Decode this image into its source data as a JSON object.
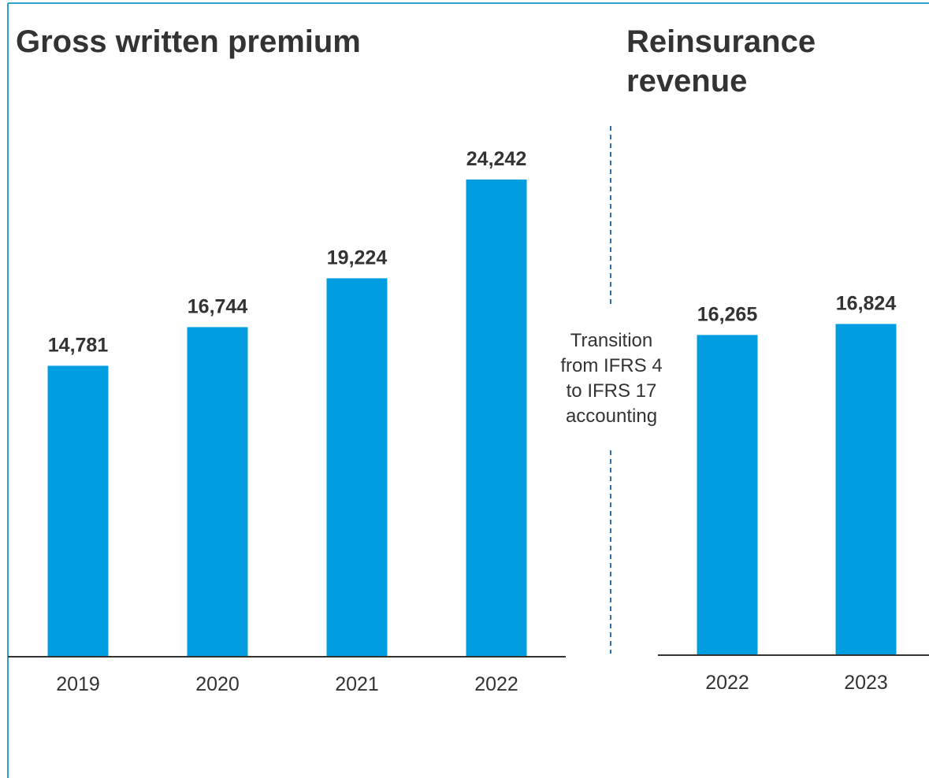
{
  "colors": {
    "bar": "#009DE0",
    "text": "#333333",
    "frame": "#2E9FD0",
    "axis": "#333333",
    "divider": "#2A6FA8"
  },
  "chart_data": [
    {
      "type": "bar",
      "title": "Gross written premium",
      "categories": [
        "2019",
        "2020",
        "2021",
        "2022"
      ],
      "values": [
        14781,
        16744,
        19224,
        24242
      ],
      "value_labels": [
        "14,781",
        "16,744",
        "19,224",
        "24,242"
      ],
      "xlabel": "",
      "ylabel": "",
      "ylim": [
        0,
        25600
      ],
      "grid": false,
      "legend": "none"
    },
    {
      "type": "bar",
      "title_lines": [
        "Reinsurance",
        "revenue"
      ],
      "categories": [
        "2022",
        "2023"
      ],
      "values": [
        16265,
        16824
      ],
      "value_labels": [
        "16,265",
        "16,824"
      ],
      "xlabel": "",
      "ylabel": "",
      "ylim": [
        0,
        25600
      ],
      "grid": false,
      "legend": "none"
    }
  ],
  "annotation": {
    "lines": [
      "Transition",
      "from IFRS 4",
      "to IFRS 17",
      "accounting"
    ]
  }
}
